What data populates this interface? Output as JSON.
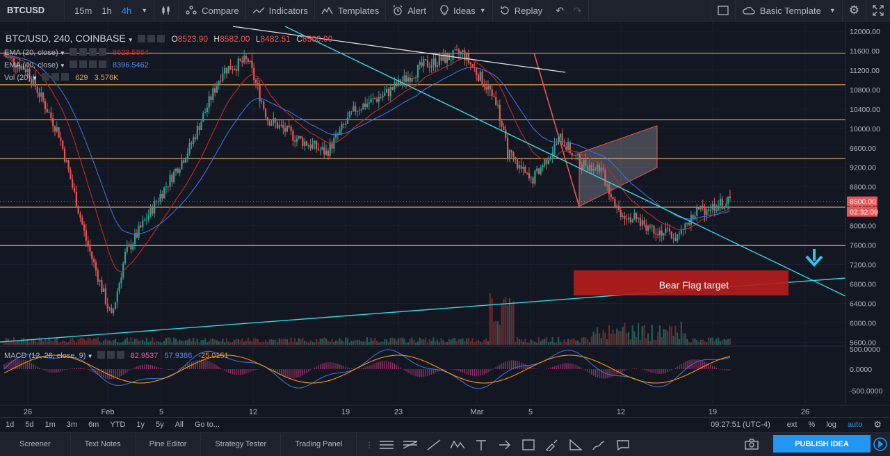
{
  "toolbar": {
    "symbol": "BTCUSD",
    "intervals": [
      "15m",
      "1h",
      "4h"
    ],
    "active_interval": "4h",
    "compare": "Compare",
    "indicators": "Indicators",
    "templates": "Templates",
    "alert": "Alert",
    "ideas": "Ideas",
    "replay": "Replay",
    "basic_template": "Basic Template"
  },
  "legend": {
    "title": "BTC/USD, 240, COINBASE",
    "o_label": "O",
    "o": "8523.90",
    "h_label": "H",
    "h": "8582.00",
    "l_label": "L",
    "l": "8482.51",
    "c_label": "C",
    "c": "8500.00",
    "ema20": "EMA (20, close)",
    "ema20_val": "8623.5864",
    "ema40": "EMA (40, close)",
    "ema40_val": "8396.5462",
    "vol": "Vol (20)",
    "vol_a": "629",
    "vol_b": "3.576K",
    "macd": "MACD (12, 26, close, 9)",
    "macd_a": "82.9537",
    "macd_b": "57.9386",
    "macd_c": "-25.0151"
  },
  "price_axis": [
    "12000.00",
    "11600.00",
    "11200.00",
    "10800.00",
    "10400.00",
    "10000.00",
    "9600.00",
    "9200.00",
    "8800.00",
    "8400.00",
    "8000.00",
    "7600.00",
    "7200.00",
    "6800.00",
    "6400.00",
    "6000.00",
    "5600.00"
  ],
  "price_tag": "8500.00",
  "countdown_tag": "02:32:09",
  "macd_axis": [
    "500.0000",
    "0.0000",
    "-500.0000"
  ],
  "time_axis": [
    "26",
    "Feb",
    "5",
    "12",
    "19",
    "23",
    "Mar",
    "5",
    "12",
    "19",
    "26"
  ],
  "annotation": "Bear Flag target",
  "range_buttons": [
    "1d",
    "5d",
    "1m",
    "3m",
    "6m",
    "YTD",
    "1y",
    "5y",
    "All",
    "Go to..."
  ],
  "clock": "09:27:51 (UTC-4)",
  "scale_buttons": [
    "ext",
    "%",
    "log",
    "auto"
  ],
  "bottom_tabs": [
    "Screener",
    "Text Notes",
    "Pine Editor",
    "Strategy Tester",
    "Trading Panel"
  ],
  "publish": "PUBLISH IDEA",
  "colors": {
    "bg": "#131722",
    "up": "#26a69a",
    "down": "#ef5350",
    "ema20": "#c62828",
    "ema40": "#3f6fd8",
    "hline": "#e3a44c",
    "trend": "#37d6e0",
    "accent": "#2196f3",
    "target": "#b71c1c"
  }
}
